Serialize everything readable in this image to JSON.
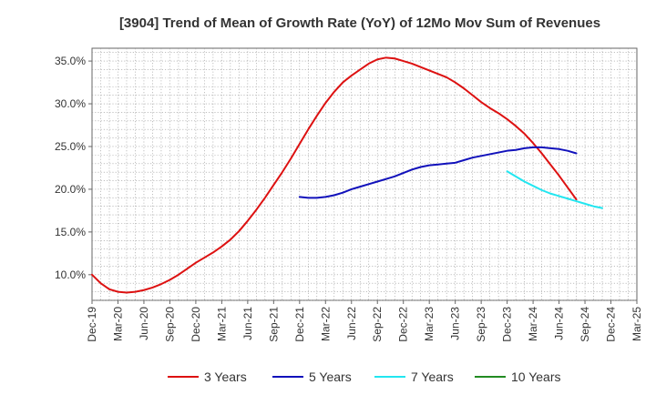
{
  "chart_data": {
    "type": "line",
    "title": "[3904]  Trend of Mean of Growth Rate (YoY) of 12Mo Mov Sum of Revenues",
    "xlabel": "",
    "ylabel": "",
    "ylim": [
      7.0,
      36.5
    ],
    "yticks": [
      10.0,
      15.0,
      20.0,
      25.0,
      30.0,
      35.0
    ],
    "ytick_labels": [
      "10.0%",
      "15.0%",
      "20.0%",
      "25.0%",
      "30.0%",
      "35.0%"
    ],
    "x_start": "Dec-19",
    "x_end": "Mar-25",
    "x_tick_labels": [
      "Dec-19",
      "Mar-20",
      "Jun-20",
      "Sep-20",
      "Dec-20",
      "Mar-21",
      "Jun-21",
      "Sep-21",
      "Dec-21",
      "Mar-22",
      "Jun-22",
      "Sep-22",
      "Dec-22",
      "Mar-23",
      "Jun-23",
      "Sep-23",
      "Dec-23",
      "Mar-24",
      "Jun-24",
      "Sep-24",
      "Dec-24",
      "Mar-25"
    ],
    "grid": true,
    "legend_position": "bottom",
    "series": [
      {
        "name": "3 Years",
        "color": "#dd1111",
        "points": [
          [
            0,
            10.0
          ],
          [
            1,
            9.0
          ],
          [
            2,
            8.3
          ],
          [
            3,
            8.0
          ],
          [
            4,
            7.9
          ],
          [
            5,
            8.0
          ],
          [
            6,
            8.2
          ],
          [
            7,
            8.5
          ],
          [
            8,
            8.9
          ],
          [
            9,
            9.4
          ],
          [
            10,
            10.0
          ],
          [
            11,
            10.7
          ],
          [
            12,
            11.4
          ],
          [
            13,
            12.0
          ],
          [
            14,
            12.6
          ],
          [
            15,
            13.3
          ],
          [
            16,
            14.1
          ],
          [
            17,
            15.1
          ],
          [
            18,
            16.3
          ],
          [
            19,
            17.6
          ],
          [
            20,
            19.0
          ],
          [
            21,
            20.5
          ],
          [
            22,
            22.0
          ],
          [
            23,
            23.6
          ],
          [
            24,
            25.3
          ],
          [
            25,
            27.0
          ],
          [
            26,
            28.6
          ],
          [
            27,
            30.1
          ],
          [
            28,
            31.4
          ],
          [
            29,
            32.5
          ],
          [
            30,
            33.3
          ],
          [
            31,
            34.0
          ],
          [
            32,
            34.7
          ],
          [
            33,
            35.2
          ],
          [
            34,
            35.4
          ],
          [
            35,
            35.3
          ],
          [
            36,
            35.0
          ],
          [
            37,
            34.7
          ],
          [
            38,
            34.3
          ],
          [
            39,
            33.9
          ],
          [
            40,
            33.5
          ],
          [
            41,
            33.1
          ],
          [
            42,
            32.5
          ],
          [
            43,
            31.8
          ],
          [
            44,
            31.0
          ],
          [
            45,
            30.2
          ],
          [
            46,
            29.5
          ],
          [
            47,
            28.9
          ],
          [
            48,
            28.2
          ],
          [
            49,
            27.4
          ],
          [
            50,
            26.5
          ],
          [
            51,
            25.4
          ],
          [
            52,
            24.2
          ],
          [
            53,
            22.9
          ],
          [
            54,
            21.6
          ],
          [
            55,
            20.2
          ],
          [
            56,
            18.8
          ]
        ]
      },
      {
        "name": "5 Years",
        "color": "#1111bb",
        "points": [
          [
            24,
            19.1
          ],
          [
            25,
            19.0
          ],
          [
            26,
            19.0
          ],
          [
            27,
            19.1
          ],
          [
            28,
            19.3
          ],
          [
            29,
            19.6
          ],
          [
            30,
            20.0
          ],
          [
            31,
            20.3
          ],
          [
            32,
            20.6
          ],
          [
            33,
            20.9
          ],
          [
            34,
            21.2
          ],
          [
            35,
            21.5
          ],
          [
            36,
            21.9
          ],
          [
            37,
            22.3
          ],
          [
            38,
            22.6
          ],
          [
            39,
            22.8
          ],
          [
            40,
            22.9
          ],
          [
            41,
            23.0
          ],
          [
            42,
            23.1
          ],
          [
            43,
            23.4
          ],
          [
            44,
            23.7
          ],
          [
            45,
            23.9
          ],
          [
            46,
            24.1
          ],
          [
            47,
            24.3
          ],
          [
            48,
            24.5
          ],
          [
            49,
            24.6
          ],
          [
            50,
            24.8
          ],
          [
            51,
            24.9
          ],
          [
            52,
            24.9
          ],
          [
            53,
            24.8
          ],
          [
            54,
            24.7
          ],
          [
            55,
            24.5
          ],
          [
            56,
            24.2
          ]
        ]
      },
      {
        "name": "7 Years",
        "color": "#22e6f0",
        "points": [
          [
            48,
            22.1
          ],
          [
            49,
            21.5
          ],
          [
            50,
            20.9
          ],
          [
            51,
            20.4
          ],
          [
            52,
            19.9
          ],
          [
            53,
            19.5
          ],
          [
            54,
            19.2
          ],
          [
            55,
            18.9
          ],
          [
            56,
            18.6
          ],
          [
            57,
            18.3
          ],
          [
            58,
            18.0
          ],
          [
            59,
            17.8
          ]
        ]
      },
      {
        "name": "10 Years",
        "color": "#228b22",
        "points": []
      }
    ]
  }
}
